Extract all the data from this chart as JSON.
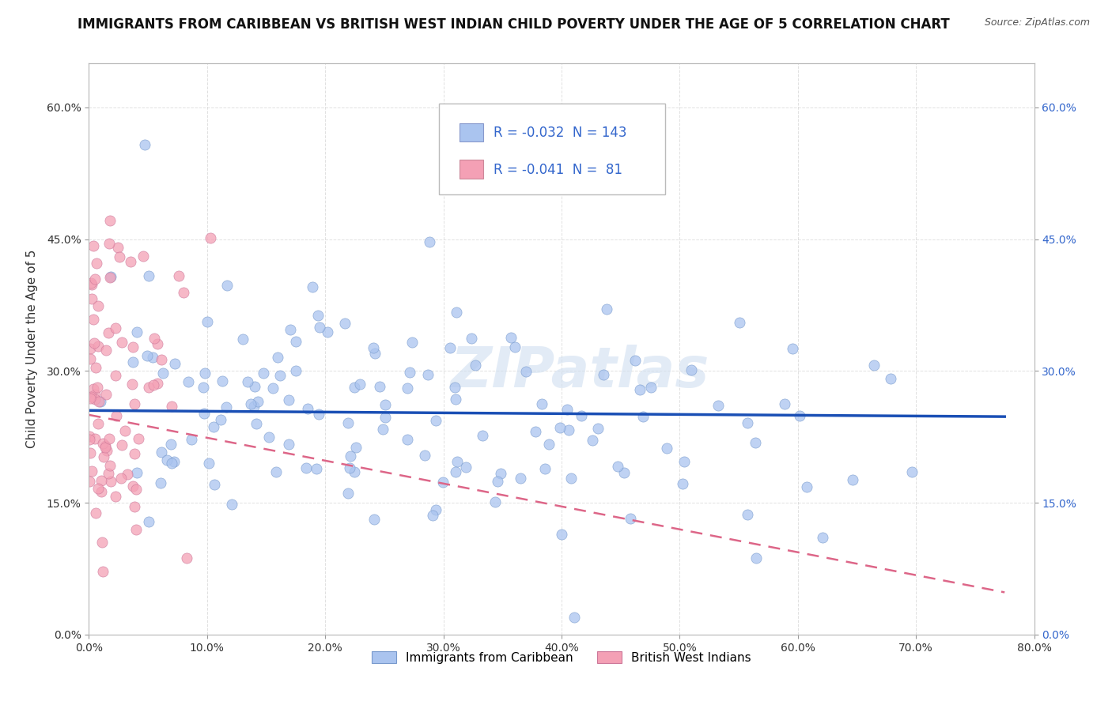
{
  "title": "IMMIGRANTS FROM CARIBBEAN VS BRITISH WEST INDIAN CHILD POVERTY UNDER THE AGE OF 5 CORRELATION CHART",
  "source": "Source: ZipAtlas.com",
  "ylabel": "Child Poverty Under the Age of 5",
  "watermark": "ZIPatlas",
  "xlim": [
    0.0,
    0.8
  ],
  "ylim": [
    0.0,
    0.65
  ],
  "xticks": [
    0.0,
    0.1,
    0.2,
    0.3,
    0.4,
    0.5,
    0.6,
    0.7,
    0.8
  ],
  "yticks": [
    0.0,
    0.15,
    0.3,
    0.45,
    0.6
  ],
  "blue_R": -0.032,
  "blue_N": 143,
  "pink_R": -0.041,
  "pink_N": 81,
  "blue_color": "#aac4ef",
  "pink_color": "#f4a0b5",
  "blue_edge_color": "#7799cc",
  "pink_edge_color": "#cc7799",
  "blue_line_color": "#1a4fb5",
  "pink_line_color": "#dd6688",
  "legend_labels": [
    "Immigrants from Caribbean",
    "British West Indians"
  ],
  "title_fontsize": 12,
  "axis_label_fontsize": 11,
  "tick_fontsize": 10,
  "legend_fontsize": 11,
  "background_color": "#ffffff",
  "grid_color": "#cccccc",
  "blue_line_start_y": 0.255,
  "blue_line_end_y": 0.248,
  "pink_line_start_y": 0.25,
  "pink_line_end_y": 0.048,
  "blue_line_start_x": 0.0,
  "blue_line_end_x": 0.775,
  "pink_line_start_x": 0.0,
  "pink_line_end_x": 0.775
}
